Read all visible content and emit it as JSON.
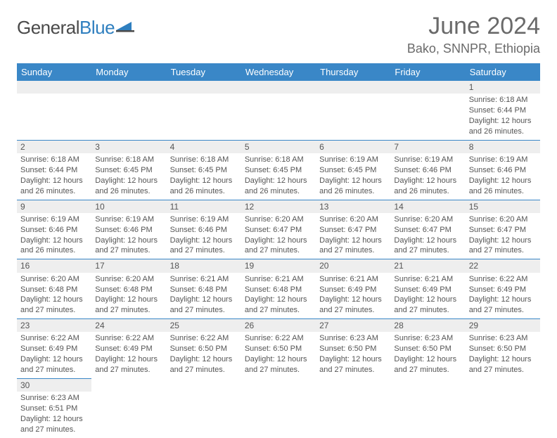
{
  "brand": {
    "part1": "General",
    "part2": "Blue"
  },
  "title": "June 2024",
  "location": "Bako, SNNPR, Ethiopia",
  "colors": {
    "header_bg": "#3a87c7",
    "header_text": "#ffffff",
    "cell_border": "#3a87c7",
    "daynum_bg": "#eeeeee",
    "body_text": "#555555",
    "logo_blue": "#2f7fbf"
  },
  "weekdays": [
    "Sunday",
    "Monday",
    "Tuesday",
    "Wednesday",
    "Thursday",
    "Friday",
    "Saturday"
  ],
  "grid": [
    [
      null,
      null,
      null,
      null,
      null,
      null,
      {
        "n": "1",
        "sr": "Sunrise: 6:18 AM",
        "ss": "Sunset: 6:44 PM",
        "d1": "Daylight: 12 hours",
        "d2": "and 26 minutes."
      }
    ],
    [
      {
        "n": "2",
        "sr": "Sunrise: 6:18 AM",
        "ss": "Sunset: 6:44 PM",
        "d1": "Daylight: 12 hours",
        "d2": "and 26 minutes."
      },
      {
        "n": "3",
        "sr": "Sunrise: 6:18 AM",
        "ss": "Sunset: 6:45 PM",
        "d1": "Daylight: 12 hours",
        "d2": "and 26 minutes."
      },
      {
        "n": "4",
        "sr": "Sunrise: 6:18 AM",
        "ss": "Sunset: 6:45 PM",
        "d1": "Daylight: 12 hours",
        "d2": "and 26 minutes."
      },
      {
        "n": "5",
        "sr": "Sunrise: 6:18 AM",
        "ss": "Sunset: 6:45 PM",
        "d1": "Daylight: 12 hours",
        "d2": "and 26 minutes."
      },
      {
        "n": "6",
        "sr": "Sunrise: 6:19 AM",
        "ss": "Sunset: 6:45 PM",
        "d1": "Daylight: 12 hours",
        "d2": "and 26 minutes."
      },
      {
        "n": "7",
        "sr": "Sunrise: 6:19 AM",
        "ss": "Sunset: 6:46 PM",
        "d1": "Daylight: 12 hours",
        "d2": "and 26 minutes."
      },
      {
        "n": "8",
        "sr": "Sunrise: 6:19 AM",
        "ss": "Sunset: 6:46 PM",
        "d1": "Daylight: 12 hours",
        "d2": "and 26 minutes."
      }
    ],
    [
      {
        "n": "9",
        "sr": "Sunrise: 6:19 AM",
        "ss": "Sunset: 6:46 PM",
        "d1": "Daylight: 12 hours",
        "d2": "and 26 minutes."
      },
      {
        "n": "10",
        "sr": "Sunrise: 6:19 AM",
        "ss": "Sunset: 6:46 PM",
        "d1": "Daylight: 12 hours",
        "d2": "and 27 minutes."
      },
      {
        "n": "11",
        "sr": "Sunrise: 6:19 AM",
        "ss": "Sunset: 6:46 PM",
        "d1": "Daylight: 12 hours",
        "d2": "and 27 minutes."
      },
      {
        "n": "12",
        "sr": "Sunrise: 6:20 AM",
        "ss": "Sunset: 6:47 PM",
        "d1": "Daylight: 12 hours",
        "d2": "and 27 minutes."
      },
      {
        "n": "13",
        "sr": "Sunrise: 6:20 AM",
        "ss": "Sunset: 6:47 PM",
        "d1": "Daylight: 12 hours",
        "d2": "and 27 minutes."
      },
      {
        "n": "14",
        "sr": "Sunrise: 6:20 AM",
        "ss": "Sunset: 6:47 PM",
        "d1": "Daylight: 12 hours",
        "d2": "and 27 minutes."
      },
      {
        "n": "15",
        "sr": "Sunrise: 6:20 AM",
        "ss": "Sunset: 6:47 PM",
        "d1": "Daylight: 12 hours",
        "d2": "and 27 minutes."
      }
    ],
    [
      {
        "n": "16",
        "sr": "Sunrise: 6:20 AM",
        "ss": "Sunset: 6:48 PM",
        "d1": "Daylight: 12 hours",
        "d2": "and 27 minutes."
      },
      {
        "n": "17",
        "sr": "Sunrise: 6:20 AM",
        "ss": "Sunset: 6:48 PM",
        "d1": "Daylight: 12 hours",
        "d2": "and 27 minutes."
      },
      {
        "n": "18",
        "sr": "Sunrise: 6:21 AM",
        "ss": "Sunset: 6:48 PM",
        "d1": "Daylight: 12 hours",
        "d2": "and 27 minutes."
      },
      {
        "n": "19",
        "sr": "Sunrise: 6:21 AM",
        "ss": "Sunset: 6:48 PM",
        "d1": "Daylight: 12 hours",
        "d2": "and 27 minutes."
      },
      {
        "n": "20",
        "sr": "Sunrise: 6:21 AM",
        "ss": "Sunset: 6:49 PM",
        "d1": "Daylight: 12 hours",
        "d2": "and 27 minutes."
      },
      {
        "n": "21",
        "sr": "Sunrise: 6:21 AM",
        "ss": "Sunset: 6:49 PM",
        "d1": "Daylight: 12 hours",
        "d2": "and 27 minutes."
      },
      {
        "n": "22",
        "sr": "Sunrise: 6:22 AM",
        "ss": "Sunset: 6:49 PM",
        "d1": "Daylight: 12 hours",
        "d2": "and 27 minutes."
      }
    ],
    [
      {
        "n": "23",
        "sr": "Sunrise: 6:22 AM",
        "ss": "Sunset: 6:49 PM",
        "d1": "Daylight: 12 hours",
        "d2": "and 27 minutes."
      },
      {
        "n": "24",
        "sr": "Sunrise: 6:22 AM",
        "ss": "Sunset: 6:49 PM",
        "d1": "Daylight: 12 hours",
        "d2": "and 27 minutes."
      },
      {
        "n": "25",
        "sr": "Sunrise: 6:22 AM",
        "ss": "Sunset: 6:50 PM",
        "d1": "Daylight: 12 hours",
        "d2": "and 27 minutes."
      },
      {
        "n": "26",
        "sr": "Sunrise: 6:22 AM",
        "ss": "Sunset: 6:50 PM",
        "d1": "Daylight: 12 hours",
        "d2": "and 27 minutes."
      },
      {
        "n": "27",
        "sr": "Sunrise: 6:23 AM",
        "ss": "Sunset: 6:50 PM",
        "d1": "Daylight: 12 hours",
        "d2": "and 27 minutes."
      },
      {
        "n": "28",
        "sr": "Sunrise: 6:23 AM",
        "ss": "Sunset: 6:50 PM",
        "d1": "Daylight: 12 hours",
        "d2": "and 27 minutes."
      },
      {
        "n": "29",
        "sr": "Sunrise: 6:23 AM",
        "ss": "Sunset: 6:50 PM",
        "d1": "Daylight: 12 hours",
        "d2": "and 27 minutes."
      }
    ],
    [
      {
        "n": "30",
        "sr": "Sunrise: 6:23 AM",
        "ss": "Sunset: 6:51 PM",
        "d1": "Daylight: 12 hours",
        "d2": "and 27 minutes."
      },
      null,
      null,
      null,
      null,
      null,
      null
    ]
  ]
}
